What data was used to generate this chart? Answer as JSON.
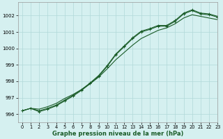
{
  "background_color": "#d5f0f0",
  "grid_color": "#b0d8d8",
  "line_color": "#1a5c28",
  "xlabel": "Graphe pression niveau de la mer (hPa)",
  "xlim": [
    -0.5,
    23
  ],
  "ylim": [
    995.5,
    1002.8
  ],
  "yticks": [
    996,
    997,
    998,
    999,
    1000,
    1001,
    1002
  ],
  "xticks": [
    0,
    1,
    2,
    3,
    4,
    5,
    6,
    7,
    8,
    9,
    10,
    11,
    12,
    13,
    14,
    15,
    16,
    17,
    18,
    19,
    20,
    21,
    22,
    23
  ],
  "series_smooth": [
    996.2,
    996.35,
    996.3,
    996.45,
    996.65,
    996.95,
    997.2,
    997.5,
    997.85,
    998.25,
    998.75,
    999.3,
    999.75,
    1000.2,
    1000.6,
    1000.85,
    1001.1,
    1001.25,
    1001.5,
    1001.85,
    1002.05,
    1001.95,
    1001.85,
    1001.75
  ],
  "series_marked1": [
    996.2,
    996.35,
    996.15,
    996.3,
    996.5,
    996.8,
    997.1,
    997.45,
    997.85,
    998.3,
    998.9,
    999.6,
    1000.1,
    1000.6,
    1001.0,
    1001.15,
    1001.35,
    1001.35,
    1001.65,
    1002.1,
    1002.3,
    1002.1,
    1002.05,
    1001.9
  ],
  "series_marked2": [
    996.2,
    996.35,
    996.2,
    996.35,
    996.55,
    996.85,
    997.15,
    997.5,
    997.9,
    998.35,
    998.95,
    999.65,
    1000.15,
    1000.65,
    1001.05,
    1001.2,
    1001.4,
    1001.4,
    1001.7,
    1002.15,
    1002.35,
    1002.15,
    1002.1,
    1001.95
  ]
}
